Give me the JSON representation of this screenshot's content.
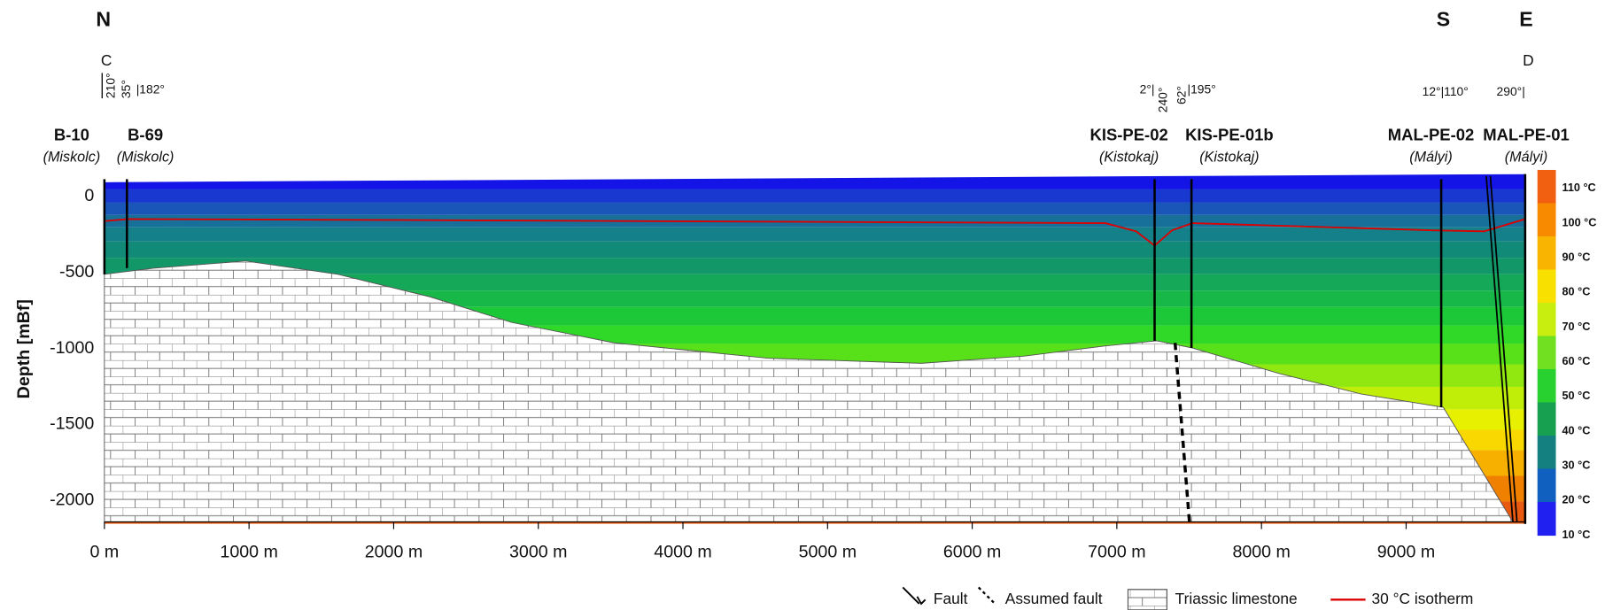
{
  "orientation": {
    "north": "N",
    "south": "S",
    "east": "E"
  },
  "section": {
    "start": "C",
    "end": "D"
  },
  "azimuths": [
    "210°",
    "35°",
    "|182°",
    "2°|",
    "240°",
    "62°",
    "|195°",
    "12°|110°",
    "290°|"
  ],
  "wells": [
    {
      "name": "B-10",
      "location": "(Miskolc)"
    },
    {
      "name": "B-69",
      "location": "(Miskolc)"
    },
    {
      "name": "KIS-PE-02",
      "location": "(Kistokaj)"
    },
    {
      "name": "KIS-PE-01b",
      "location": "(Kistokaj)"
    },
    {
      "name": "MAL-PE-02",
      "location": "(Mályi)"
    },
    {
      "name": "MAL-PE-01",
      "location": "(Mályi)"
    }
  ],
  "y_axis": {
    "label": "Depth [mBf]",
    "ticks": [
      "0",
      "-500",
      "-1000",
      "-1500",
      "-2000"
    ]
  },
  "x_axis": {
    "ticks": [
      "0 m",
      "1000 m",
      "2000 m",
      "3000 m",
      "4000 m",
      "5000 m",
      "6000 m",
      "7000 m",
      "8000 m",
      "9000 m"
    ]
  },
  "colorbar": {
    "ticks": [
      "110 °C",
      "100 °C",
      "90 °C",
      "80 °C",
      "70 °C",
      "60 °C",
      "50 °C",
      "40 °C",
      "30 °C",
      "20 °C",
      "10 °C"
    ]
  },
  "legend": {
    "fault": "Fault",
    "assumed_fault": "Assumed fault",
    "limestone": "Triassic limestone",
    "isotherm": "30 °C isotherm"
  }
}
